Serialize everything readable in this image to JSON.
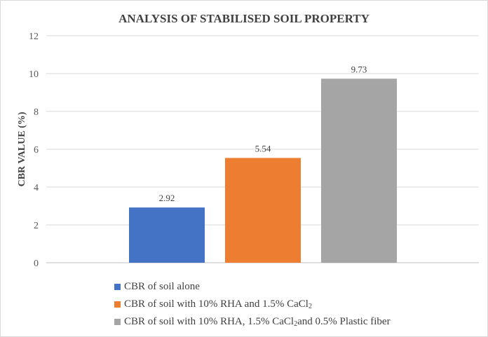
{
  "chart_data": {
    "type": "bar",
    "title": "ANALYSIS OF STABILISED SOIL PROPERTY",
    "xlabel": "",
    "ylabel": "CBR VALUE (%)",
    "ylim": [
      0,
      12
    ],
    "yticks": [
      0,
      2,
      4,
      6,
      8,
      10,
      12
    ],
    "grid": true,
    "legend_position": "bottom",
    "series": [
      {
        "name": "CBR of soil alone",
        "value": 2.92,
        "label": "2.92",
        "color": "#4472C4",
        "legend_parts": [
          "CBR of soil alone"
        ]
      },
      {
        "name": "CBR of soil with 10% RHA and 1.5% CaCl2",
        "value": 5.54,
        "label": "5.54",
        "color": "#ED7D31",
        "legend_parts": [
          "CBR of soil with 10% RHA and 1.5% CaCl",
          "2",
          ""
        ]
      },
      {
        "name": "CBR of soil with 10% RHA, 1.5% CaCl2 and 0.5% Plastic fiber",
        "value": 9.73,
        "label": "9.73",
        "color": "#A5A5A5",
        "legend_parts": [
          "CBR of soil with 10% RHA, 1.5% CaCl",
          "2",
          "and 0.5% Plastic fiber"
        ]
      }
    ]
  }
}
